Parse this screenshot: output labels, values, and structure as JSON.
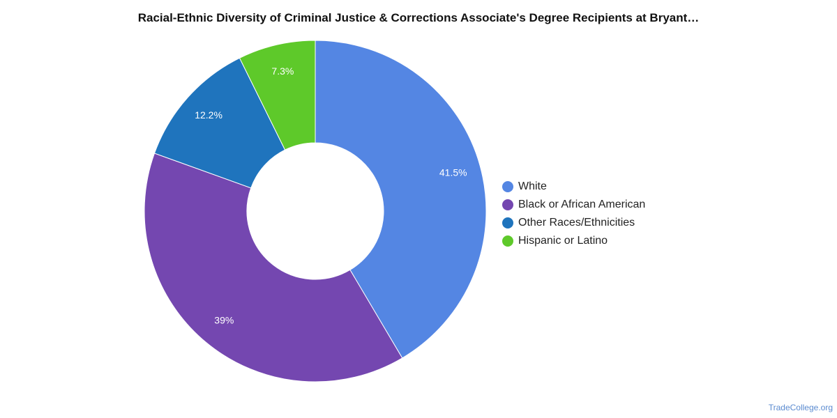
{
  "chart_data": {
    "type": "pie",
    "variant": "donut",
    "title": "Racial-Ethnic Diversity of Criminal Justice & Corrections Associate's Degree Recipients at Bryant…",
    "slices": [
      {
        "name": "White",
        "value": 41.5,
        "label": "41.5%",
        "color": "#5486e3"
      },
      {
        "name": "Black or African American",
        "value": 39,
        "label": "39%",
        "color": "#7447b0"
      },
      {
        "name": "Other Races/Ethnicities",
        "value": 12.2,
        "label": "12.2%",
        "color": "#1f74bd"
      },
      {
        "name": "Hispanic or Latino",
        "value": 7.3,
        "label": "7.3%",
        "color": "#5ec92a"
      }
    ],
    "legend_position": "right"
  },
  "watermark": "TradeCollege.org"
}
